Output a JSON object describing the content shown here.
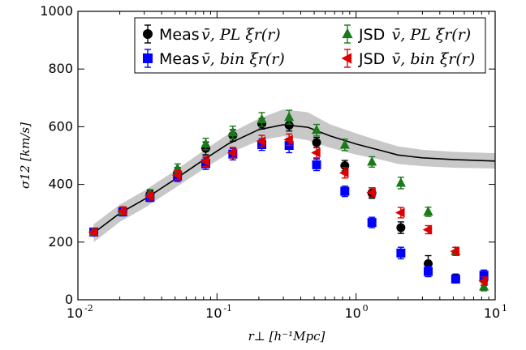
{
  "chart_data": {
    "type": "scatter",
    "xlabel": "r⊥ [h⁻¹Mpc]",
    "ylabel": "σ12 [km/s]",
    "xscale": "log",
    "xlim": [
      0.01,
      10
    ],
    "ylim": [
      0,
      1000
    ],
    "x_ticks": [
      0.01,
      0.1,
      1,
      10
    ],
    "x_tick_labels": [
      [
        "10",
        "-2"
      ],
      [
        "10",
        "-1"
      ],
      [
        "10",
        "0"
      ],
      [
        "10",
        "1"
      ]
    ],
    "y_ticks": [
      0,
      200,
      400,
      600,
      800,
      1000
    ],
    "y_tick_labels": [
      "0",
      "200",
      "400",
      "600",
      "800",
      "1000"
    ],
    "grid": false,
    "legend_position": "top",
    "model_line": {
      "color": "#000000",
      "x": [
        0.013,
        0.02,
        0.03,
        0.05,
        0.08,
        0.12,
        0.2,
        0.3,
        0.45,
        0.65,
        1.0,
        1.5,
        2.0,
        3.0,
        5.0,
        10.0
      ],
      "y": [
        232,
        300,
        348,
        418,
        485,
        540,
        590,
        607,
        598,
        568,
        540,
        518,
        502,
        492,
        486,
        481
      ],
      "band_low": [
        200,
        270,
        318,
        388,
        453,
        506,
        552,
        567,
        553,
        527,
        503,
        486,
        471,
        463,
        458,
        455
      ],
      "band_high": [
        262,
        330,
        378,
        448,
        517,
        574,
        628,
        660,
        650,
        608,
        577,
        550,
        532,
        520,
        513,
        508
      ],
      "band_color": "#c8c8c8"
    },
    "series": [
      {
        "name": "Meas v̄, PL ξr(r)",
        "label_text": "Meas",
        "label_math": "v̄, PL ξr(r)",
        "marker": "circle",
        "color": "#000000",
        "x": [
          0.013,
          0.021,
          0.033,
          0.052,
          0.083,
          0.13,
          0.21,
          0.33,
          0.52,
          0.83,
          1.3,
          2.1,
          3.3,
          5.2,
          8.3
        ],
        "y": [
          235,
          305,
          365,
          440,
          525,
          570,
          610,
          605,
          545,
          465,
          370,
          250,
          125,
          75,
          70
        ],
        "err": [
          10,
          14,
          14,
          18,
          22,
          20,
          18,
          20,
          18,
          18,
          18,
          20,
          28,
          14,
          20
        ]
      },
      {
        "name": "Meas v̄, bin ξr(r)",
        "label_text": "Meas",
        "label_math": "v̄, bin ξr(r)",
        "marker": "square",
        "color": "#0000ff",
        "x": [
          0.013,
          0.021,
          0.033,
          0.052,
          0.083,
          0.13,
          0.21,
          0.33,
          0.52,
          0.83,
          1.3,
          2.1,
          3.3,
          5.2,
          8.3
        ],
        "y": [
          235,
          305,
          355,
          428,
          472,
          505,
          538,
          535,
          468,
          376,
          268,
          162,
          98,
          72,
          85
        ],
        "err": [
          10,
          14,
          14,
          18,
          20,
          20,
          20,
          25,
          20,
          18,
          18,
          20,
          18,
          14,
          18
        ]
      },
      {
        "name": "JSD v̄, PL ξr(r)",
        "label_text": "JSD",
        "label_math": "v̄, PL ξr(r)",
        "marker": "triangle-up",
        "color": "#1a7a1a",
        "x": [
          0.013,
          0.021,
          0.033,
          0.052,
          0.083,
          0.13,
          0.21,
          0.33,
          0.52,
          0.83,
          1.3,
          2.1,
          3.3,
          5.2,
          8.3
        ],
        "y": [
          235,
          308,
          368,
          455,
          540,
          580,
          625,
          633,
          588,
          537,
          478,
          405,
          305,
          168,
          45
        ],
        "err": [
          10,
          14,
          14,
          16,
          20,
          22,
          24,
          24,
          20,
          20,
          18,
          20,
          16,
          14,
          14
        ]
      },
      {
        "name": "JSD v̄, bin ξr(r)",
        "label_text": "JSD",
        "label_math": "v̄, bin ξr(r)",
        "marker": "triangle-left",
        "color": "#dd0000",
        "x": [
          0.013,
          0.021,
          0.033,
          0.052,
          0.083,
          0.13,
          0.21,
          0.33,
          0.52,
          0.83,
          1.3,
          2.1,
          3.3,
          5.2,
          8.3
        ],
        "y": [
          235,
          308,
          360,
          432,
          480,
          510,
          550,
          555,
          510,
          440,
          372,
          302,
          243,
          168,
          65
        ],
        "err": [
          10,
          14,
          14,
          16,
          18,
          18,
          20,
          20,
          18,
          18,
          16,
          18,
          14,
          14,
          14
        ]
      }
    ]
  }
}
